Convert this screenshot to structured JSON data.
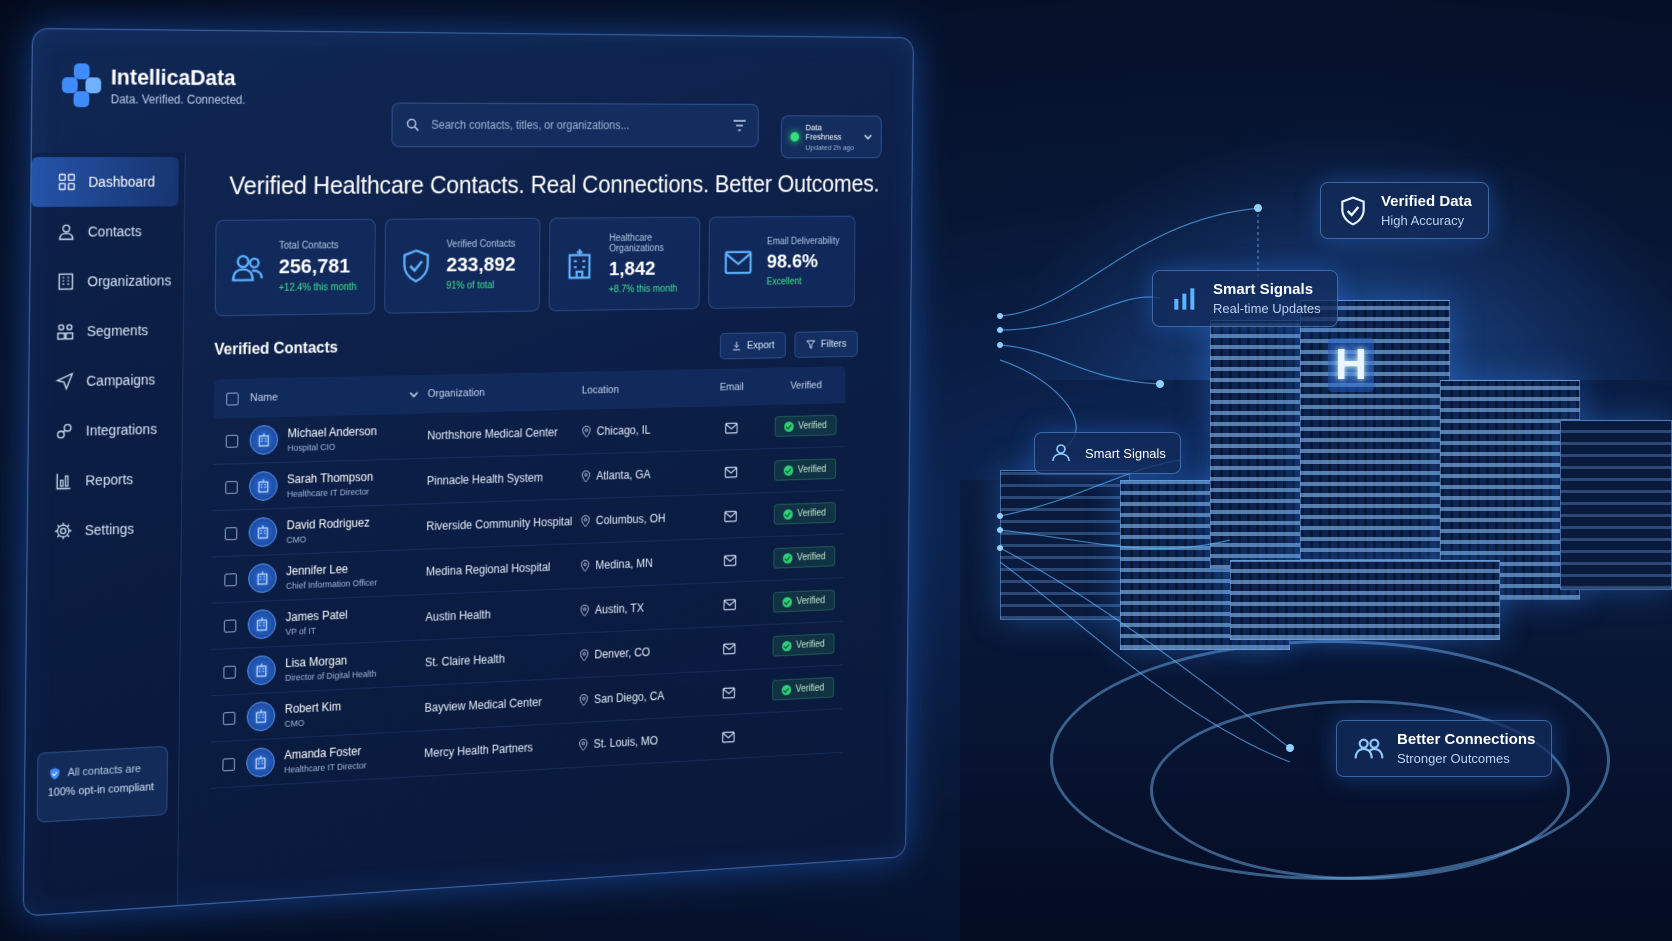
{
  "brand": {
    "name": "IntellicaData",
    "tagline": "Data. Verified. Connected."
  },
  "search": {
    "placeholder": "Search contacts, titles, or organizations..."
  },
  "freshness": {
    "title": "Data Freshness",
    "subtitle": "Updated 2h ago",
    "status_color": "#2ee27a"
  },
  "sidebar": {
    "items": [
      {
        "label": "Dashboard",
        "icon": "grid-icon",
        "active": true
      },
      {
        "label": "Contacts",
        "icon": "user-icon"
      },
      {
        "label": "Organizations",
        "icon": "building-icon"
      },
      {
        "label": "Segments",
        "icon": "segments-icon"
      },
      {
        "label": "Campaigns",
        "icon": "send-icon"
      },
      {
        "label": "Integrations",
        "icon": "puzzle-icon"
      },
      {
        "label": "Reports",
        "icon": "report-icon"
      },
      {
        "label": "Settings",
        "icon": "gear-icon"
      }
    ],
    "compliance": {
      "line1": "All contacts are",
      "line2": "100% opt-in compliant"
    }
  },
  "headline": "Verified Healthcare Contacts. Real Connections. Better Outcomes.",
  "stats": [
    {
      "label": "Total Contacts",
      "value": "256,781",
      "delta": "+12.4% this month",
      "icon": "users-icon"
    },
    {
      "label": "Verified Contacts",
      "value": "233,892",
      "delta": "91% of total",
      "icon": "shield-check-icon"
    },
    {
      "label": "Healthcare Organizations",
      "value": "1,842",
      "delta": "+8.7% this month",
      "icon": "hospital-icon"
    },
    {
      "label": "Email Deliverability",
      "value": "98.6%",
      "delta": "Excellent",
      "icon": "mail-icon"
    }
  ],
  "table": {
    "title": "Verified Contacts",
    "export_label": "Export",
    "filters_label": "Filters",
    "columns": {
      "name": "Name",
      "organization": "Organization",
      "location": "Location",
      "email": "Email",
      "verified": "Verified"
    },
    "rows": [
      {
        "name": "Michael Anderson",
        "title": "Hospital CIO",
        "org": "Northshore Medical Center",
        "location": "Chicago, IL",
        "status": "Verified"
      },
      {
        "name": "Sarah Thompson",
        "title": "Healthcare IT Director",
        "org": "Pinnacle Health System",
        "location": "Atlanta, GA",
        "status": "Verified"
      },
      {
        "name": "David Rodriguez",
        "title": "CMO",
        "org": "Riverside Community Hospital",
        "location": "Columbus, OH",
        "status": "Verified"
      },
      {
        "name": "Jennifer Lee",
        "title": "Chief Information Officer",
        "org": "Medina Regional Hospital",
        "location": "Medina, MN",
        "status": "Verified"
      },
      {
        "name": "James Patel",
        "title": "VP of IT",
        "org": "Austin Health",
        "location": "Austin, TX",
        "status": "Verified"
      },
      {
        "name": "Lisa Morgan",
        "title": "Director of Digital Health",
        "org": "St. Claire Health",
        "location": "Denver, CO",
        "status": "Verified"
      },
      {
        "name": "Robert Kim",
        "title": "CMO",
        "org": "Bayview Medical Center",
        "location": "San Diego, CA",
        "status": "Verified"
      },
      {
        "name": "Amanda Foster",
        "title": "Healthcare IT Director",
        "org": "Mercy Health Partners",
        "location": "St. Louis, MO",
        "status": ""
      }
    ]
  },
  "scene": {
    "hospital_sign": "H",
    "cards": [
      {
        "title": "Verified Data",
        "subtitle": "High Accuracy",
        "icon": "shield-check-icon"
      },
      {
        "title": "Smart Signals",
        "subtitle": "Real-time Updates",
        "icon": "bar-chart-icon"
      },
      {
        "title": "Smart Signals",
        "subtitle": "",
        "icon": "user-signal-icon"
      },
      {
        "title": "Better Connections",
        "subtitle": "Stronger Outcomes",
        "icon": "people-icon"
      }
    ]
  },
  "colors": {
    "accent": "#3f8cff",
    "positive": "#3fe08e",
    "panel": "#10285a"
  }
}
